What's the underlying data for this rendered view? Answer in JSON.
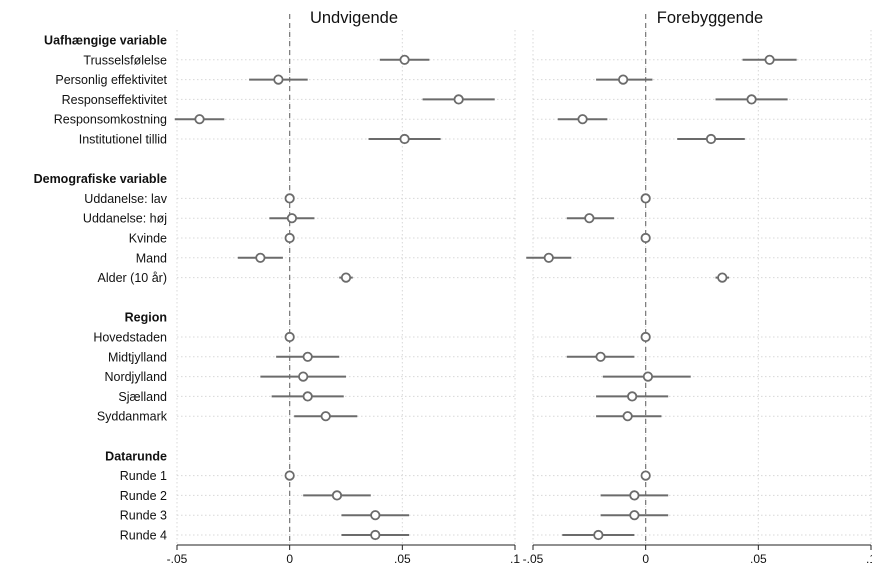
{
  "chart_data": {
    "type": "coefficient-plot",
    "grid": true,
    "panels": [
      {
        "title": "Undvigende"
      },
      {
        "title": "Forebyggende"
      }
    ],
    "xlim": [
      -0.05,
      0.1
    ],
    "xticks": [
      {
        "value": -0.05,
        "label": "-.05"
      },
      {
        "value": 0,
        "label": "0"
      },
      {
        "value": 0.05,
        "label": ".05"
      },
      {
        "value": 0.1,
        "label": ".1"
      }
    ],
    "reference_line": 0,
    "groups": [
      {
        "header": "Uafhængige variable",
        "rows": [
          {
            "label": "Trusselsfølelse",
            "values": [
              {
                "est": 0.051,
                "lo": 0.04,
                "hi": 0.062
              },
              {
                "est": 0.055,
                "lo": 0.043,
                "hi": 0.067
              }
            ]
          },
          {
            "label": "Personlig effektivitet",
            "values": [
              {
                "est": -0.005,
                "lo": -0.018,
                "hi": 0.008
              },
              {
                "est": -0.01,
                "lo": -0.022,
                "hi": 0.003
              }
            ]
          },
          {
            "label": "Responseffektivitet",
            "values": [
              {
                "est": 0.075,
                "lo": 0.059,
                "hi": 0.091
              },
              {
                "est": 0.047,
                "lo": 0.031,
                "hi": 0.063
              }
            ]
          },
          {
            "label": "Responsomkostning",
            "values": [
              {
                "est": -0.04,
                "lo": -0.051,
                "hi": -0.029
              },
              {
                "est": -0.028,
                "lo": -0.039,
                "hi": -0.017
              }
            ]
          },
          {
            "label": "Institutionel tillid",
            "values": [
              {
                "est": 0.051,
                "lo": 0.035,
                "hi": 0.067
              },
              {
                "est": 0.029,
                "lo": 0.014,
                "hi": 0.044
              }
            ]
          }
        ]
      },
      {
        "header": "Demografiske variable",
        "rows": [
          {
            "label": "Uddanelse: lav",
            "values": [
              {
                "est": 0,
                "lo": 0,
                "hi": 0
              },
              {
                "est": 0,
                "lo": 0,
                "hi": 0
              }
            ]
          },
          {
            "label": "Uddanelse: høj",
            "values": [
              {
                "est": 0.001,
                "lo": -0.009,
                "hi": 0.011
              },
              {
                "est": -0.025,
                "lo": -0.035,
                "hi": -0.014
              }
            ]
          },
          {
            "label": "Kvinde",
            "values": [
              {
                "est": 0,
                "lo": 0,
                "hi": 0
              },
              {
                "est": 0,
                "lo": 0,
                "hi": 0
              }
            ]
          },
          {
            "label": "Mand",
            "values": [
              {
                "est": -0.013,
                "lo": -0.023,
                "hi": -0.003
              },
              {
                "est": -0.043,
                "lo": -0.053,
                "hi": -0.033
              }
            ]
          },
          {
            "label": "Alder (10 år)",
            "values": [
              {
                "est": 0.025,
                "lo": 0.022,
                "hi": 0.028
              },
              {
                "est": 0.034,
                "lo": 0.031,
                "hi": 0.037
              }
            ]
          }
        ]
      },
      {
        "header": "Region",
        "rows": [
          {
            "label": "Hovedstaden",
            "values": [
              {
                "est": 0,
                "lo": 0,
                "hi": 0
              },
              {
                "est": 0,
                "lo": 0,
                "hi": 0
              }
            ]
          },
          {
            "label": "Midtjylland",
            "values": [
              {
                "est": 0.008,
                "lo": -0.006,
                "hi": 0.022
              },
              {
                "est": -0.02,
                "lo": -0.035,
                "hi": -0.005
              }
            ]
          },
          {
            "label": "Nordjylland",
            "values": [
              {
                "est": 0.006,
                "lo": -0.013,
                "hi": 0.025
              },
              {
                "est": 0.001,
                "lo": -0.019,
                "hi": 0.02
              }
            ]
          },
          {
            "label": "Sjælland",
            "values": [
              {
                "est": 0.008,
                "lo": -0.008,
                "hi": 0.024
              },
              {
                "est": -0.006,
                "lo": -0.022,
                "hi": 0.01
              }
            ]
          },
          {
            "label": "Syddanmark",
            "values": [
              {
                "est": 0.016,
                "lo": 0.002,
                "hi": 0.03
              },
              {
                "est": -0.008,
                "lo": -0.022,
                "hi": 0.007
              }
            ]
          }
        ]
      },
      {
        "header": "Datarunde",
        "rows": [
          {
            "label": "Runde 1",
            "values": [
              {
                "est": 0,
                "lo": 0,
                "hi": 0
              },
              {
                "est": 0,
                "lo": 0,
                "hi": 0
              }
            ]
          },
          {
            "label": "Runde 2",
            "values": [
              {
                "est": 0.021,
                "lo": 0.006,
                "hi": 0.036
              },
              {
                "est": -0.005,
                "lo": -0.02,
                "hi": 0.01
              }
            ]
          },
          {
            "label": "Runde 3",
            "values": [
              {
                "est": 0.038,
                "lo": 0.023,
                "hi": 0.053
              },
              {
                "est": -0.005,
                "lo": -0.02,
                "hi": 0.01
              }
            ]
          },
          {
            "label": "Runde 4",
            "values": [
              {
                "est": 0.038,
                "lo": 0.023,
                "hi": 0.053
              },
              {
                "est": -0.021,
                "lo": -0.037,
                "hi": -0.005
              }
            ]
          }
        ]
      }
    ]
  },
  "colors": {
    "marker": "#6b6b6b",
    "ci": "#6b6b6b",
    "grid": "#d8d8d8",
    "axis": "#222222",
    "reference": "#777777"
  }
}
